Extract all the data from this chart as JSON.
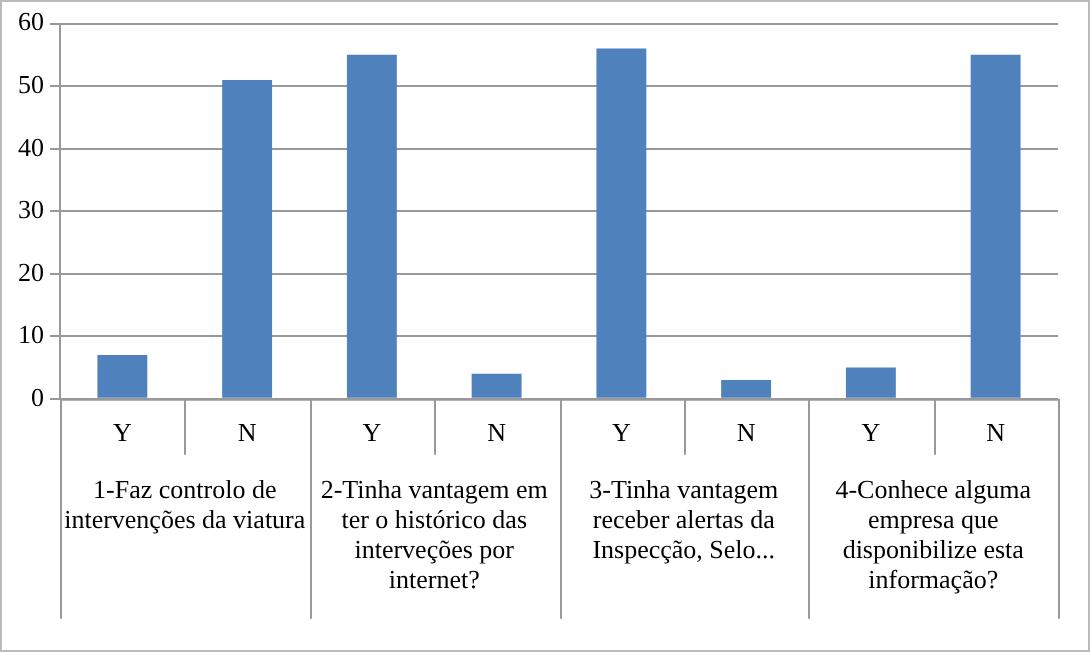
{
  "chart_data": {
    "type": "bar",
    "categories": [
      "Y",
      "N",
      "Y",
      "N",
      "Y",
      "N",
      "Y",
      "N"
    ],
    "values": [
      7,
      51,
      55,
      4,
      56,
      3,
      5,
      55
    ],
    "color": "#4f81bd",
    "ylim": [
      0,
      60
    ],
    "yticks": [
      0,
      10,
      20,
      30,
      40,
      50,
      60
    ],
    "grid": "y",
    "legend": false,
    "annotations": [
      "1-Faz controlo de intervenções da viatura",
      "2-Tinha vantagem em ter o histórico das interveções por internet?",
      "3-Tinha vantagem receber alertas da Inspecção, Selo...",
      "4-Conhece alguma empresa que disponibilize esta informação?"
    ]
  }
}
